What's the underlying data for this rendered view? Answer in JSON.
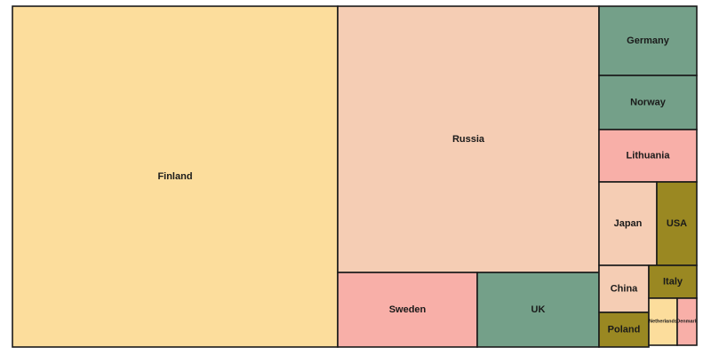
{
  "chart_data": {
    "type": "treemap",
    "title": "",
    "items": [
      {
        "name": "Finland",
        "value": 1000,
        "color": "#fcdd9c"
      },
      {
        "name": "Russia",
        "value": 640,
        "color": "#f5cdb4"
      },
      {
        "name": "Sweden",
        "value": 95,
        "color": "#f8afa8"
      },
      {
        "name": "UK",
        "value": 82,
        "color": "#74a089"
      },
      {
        "name": "Germany",
        "value": 60,
        "color": "#74a089"
      },
      {
        "name": "Norway",
        "value": 47,
        "color": "#74a089"
      },
      {
        "name": "Lithuania",
        "value": 46,
        "color": "#f8afa8"
      },
      {
        "name": "Japan",
        "value": 44,
        "color": "#f5cdb4"
      },
      {
        "name": "USA",
        "value": 31,
        "color": "#9a8822"
      },
      {
        "name": "China",
        "value": 22,
        "color": "#f5cdb4"
      },
      {
        "name": "Italy",
        "value": 15,
        "color": "#9a8822"
      },
      {
        "name": "Poland",
        "value": 14,
        "color": "#9a8822"
      },
      {
        "name": "Netherlands",
        "value": 7,
        "color": "#fcdd9c"
      },
      {
        "name": "Denmark",
        "value": 5,
        "color": "#f8afa8"
      }
    ]
  }
}
